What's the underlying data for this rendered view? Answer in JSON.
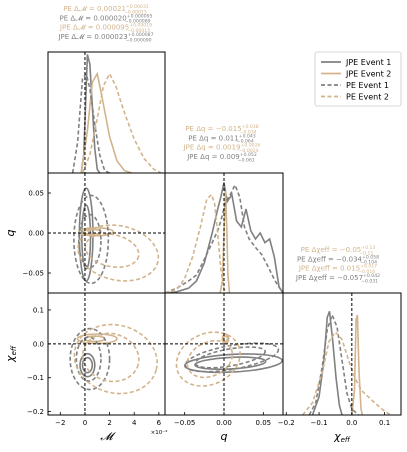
{
  "chart_data": {
    "type": "corner",
    "series": [
      {
        "name": "JPE Event 1",
        "color": "#808080",
        "dash": "solid"
      },
      {
        "name": "JPE Event 2",
        "color": "#d2b48c",
        "dash": "solid"
      },
      {
        "name": "PE Event 1",
        "color": "#808080",
        "dash": "dashed"
      },
      {
        "name": "PE Event 2",
        "color": "#d2b48c",
        "dash": "dashed"
      }
    ],
    "parameters": [
      {
        "key": "mc",
        "symbol": "𝓜",
        "sub": "",
        "range": [
          -0.0003,
          0.00065
        ],
        "ticks": [
          -2,
          0,
          2,
          4,
          6
        ],
        "tick_scale": "×10⁻⁴"
      },
      {
        "key": "q",
        "symbol": "q",
        "sub": "",
        "range": [
          -0.075,
          0.075
        ],
        "ticks": [
          -0.05,
          0.0,
          0.05
        ]
      },
      {
        "key": "chi",
        "symbol": "χ",
        "sub": "eff",
        "range": [
          -0.21,
          0.15
        ],
        "ticks": [
          -0.2,
          -0.1,
          0.0,
          0.1
        ]
      }
    ],
    "truths": {
      "mc": 0,
      "q": 0,
      "chi": 0
    },
    "titles": {
      "mc": [
        {
          "prefix": "PE Δ𝓜",
          "value": "0.00021",
          "up": "+0.00031",
          "lo": "−0.00015",
          "color": "#d2b48c"
        },
        {
          "prefix": "PE Δ𝓜",
          "value": "0.000020",
          "up": "+0.000095",
          "lo": "−0.000089",
          "color": "#808080"
        },
        {
          "prefix": "JPE Δ𝓜",
          "value": "0.000095",
          "up": "+0.00019",
          "lo": "−0.00015",
          "color": "#d2b48c"
        },
        {
          "prefix": "JPE Δ𝓜",
          "value": "0.000023",
          "up": "+0.000087",
          "lo": "−0.000090",
          "color": "#808080"
        }
      ],
      "q": [
        {
          "prefix": "PE Δq",
          "value": "−0.015",
          "up": "+0.038",
          "lo": "−0.034",
          "color": "#d2b48c"
        },
        {
          "prefix": "PE Δq",
          "value": "0.011",
          "up": "+0.043",
          "lo": "−0.064",
          "color": "#808080"
        },
        {
          "prefix": "JPE Δq",
          "value": "0.0019",
          "up": "+0.0026",
          "lo": "−0.0024",
          "color": "#d2b48c"
        },
        {
          "prefix": "JPE Δq",
          "value": "0.009",
          "up": "+0.052",
          "lo": "−0.061",
          "color": "#808080"
        }
      ],
      "chi": [
        {
          "prefix": "PE Δχeff",
          "value": "−0.05",
          "up": "+0.13",
          "lo": "−0.11",
          "color": "#d2b48c"
        },
        {
          "prefix": "PE Δχeff",
          "value": "−0.034",
          "up": "+0.058",
          "lo": "−0.104",
          "color": "#808080"
        },
        {
          "prefix": "JPE Δχeff",
          "value": "0.015",
          "up": "+0.017",
          "lo": "−0.016",
          "color": "#d2b48c"
        },
        {
          "prefix": "JPE Δχeff",
          "value": "−0.057",
          "up": "+0.042",
          "lo": "−0.031",
          "color": "#808080"
        }
      ]
    },
    "marginals": {
      "mc": [
        {
          "series": 0,
          "points": [
            [
              -3e-05,
              0
            ],
            [
              -1e-05,
              0.15
            ],
            [
              1e-05,
              0.7
            ],
            [
              2e-05,
              0.98
            ],
            [
              4e-05,
              0.9
            ],
            [
              6e-05,
              0.55
            ],
            [
              8e-05,
              0.2
            ],
            [
              0.0001,
              0.03
            ],
            [
              0.00012,
              0
            ]
          ]
        },
        {
          "series": 1,
          "points": [
            [
              -3e-05,
              0
            ],
            [
              2e-05,
              0.35
            ],
            [
              6e-05,
              0.75
            ],
            [
              0.0001,
              0.82
            ],
            [
              0.00014,
              0.62
            ],
            [
              0.0002,
              0.3
            ],
            [
              0.00026,
              0.1
            ],
            [
              0.00032,
              0.02
            ],
            [
              0.00038,
              0
            ]
          ]
        },
        {
          "series": 2,
          "points": [
            [
              -0.0001,
              0
            ],
            [
              -6e-05,
              0.25
            ],
            [
              -2e-05,
              0.78
            ],
            [
              1e-05,
              0.82
            ],
            [
              4e-05,
              0.7
            ],
            [
              8e-05,
              0.4
            ],
            [
              0.00012,
              0.15
            ],
            [
              0.00016,
              0.02
            ],
            [
              0.0002,
              0
            ]
          ]
        },
        {
          "series": 3,
          "points": [
            [
              -2e-05,
              0
            ],
            [
              4e-05,
              0.15
            ],
            [
              0.0001,
              0.45
            ],
            [
              0.00015,
              0.72
            ],
            [
              0.0002,
              0.82
            ],
            [
              0.00025,
              0.72
            ],
            [
              0.00032,
              0.5
            ],
            [
              0.0004,
              0.28
            ],
            [
              0.00048,
              0.12
            ],
            [
              0.00056,
              0.03
            ],
            [
              0.00062,
              0
            ]
          ]
        }
      ],
      "q": [
        {
          "series": 0,
          "points": [
            [
              -0.075,
              0
            ],
            [
              -0.06,
              0.01
            ],
            [
              -0.045,
              0.04
            ],
            [
              -0.035,
              0.1
            ],
            [
              -0.025,
              0.25
            ],
            [
              -0.015,
              0.5
            ],
            [
              -0.008,
              0.7
            ],
            [
              -0.004,
              0.8
            ],
            [
              0,
              0.92
            ],
            [
              0.004,
              0.76
            ],
            [
              0.01,
              0.82
            ],
            [
              0.016,
              0.6
            ],
            [
              0.022,
              0.55
            ],
            [
              0.028,
              0.7
            ],
            [
              0.034,
              0.52
            ],
            [
              0.04,
              0.45
            ],
            [
              0.046,
              0.5
            ],
            [
              0.052,
              0.42
            ],
            [
              0.058,
              0.45
            ],
            [
              0.064,
              0.3
            ],
            [
              0.07,
              0.05
            ],
            [
              0.075,
              0
            ]
          ]
        },
        {
          "series": 1,
          "points": [
            [
              -0.005,
              0
            ],
            [
              -0.002,
              0.1
            ],
            [
              0,
              0.5
            ],
            [
              0.002,
              0.85
            ],
            [
              0.0035,
              0.55
            ],
            [
              0.005,
              0.15
            ],
            [
              0.007,
              0
            ]
          ]
        },
        {
          "series": 2,
          "points": [
            [
              -0.075,
              0
            ],
            [
              -0.06,
              0.04
            ],
            [
              -0.045,
              0.1
            ],
            [
              -0.035,
              0.15
            ],
            [
              -0.025,
              0.28
            ],
            [
              -0.015,
              0.42
            ],
            [
              -0.008,
              0.52
            ],
            [
              -0.004,
              0.6
            ],
            [
              0.002,
              0.76
            ],
            [
              0.008,
              0.82
            ],
            [
              0.014,
              0.9
            ],
            [
              0.02,
              0.8
            ],
            [
              0.026,
              0.55
            ],
            [
              0.032,
              0.45
            ],
            [
              0.04,
              0.38
            ],
            [
              0.048,
              0.32
            ],
            [
              0.056,
              0.22
            ],
            [
              0.065,
              0.1
            ],
            [
              0.075,
              0
            ]
          ]
        },
        {
          "series": 3,
          "points": [
            [
              -0.075,
              0
            ],
            [
              -0.06,
              0.03
            ],
            [
              -0.05,
              0.12
            ],
            [
              -0.04,
              0.3
            ],
            [
              -0.03,
              0.55
            ],
            [
              -0.022,
              0.78
            ],
            [
              -0.016,
              0.82
            ],
            [
              -0.012,
              0.75
            ],
            [
              -0.008,
              0.5
            ],
            [
              -0.004,
              0.2
            ],
            [
              0,
              0.03
            ],
            [
              0.004,
              0
            ]
          ]
        }
      ],
      "chi": [
        {
          "series": 0,
          "points": [
            [
              -0.12,
              0
            ],
            [
              -0.1,
              0.15
            ],
            [
              -0.085,
              0.45
            ],
            [
              -0.075,
              0.8
            ],
            [
              -0.068,
              0.85
            ],
            [
              -0.058,
              0.6
            ],
            [
              -0.048,
              0.3
            ],
            [
              -0.038,
              0.08
            ],
            [
              -0.03,
              0
            ]
          ]
        },
        {
          "series": 1,
          "points": [
            [
              0.0,
              0
            ],
            [
              0.008,
              0.2
            ],
            [
              0.013,
              0.78
            ],
            [
              0.017,
              0.82
            ],
            [
              0.022,
              0.35
            ],
            [
              0.028,
              0.05
            ],
            [
              0.032,
              0
            ]
          ]
        },
        {
          "series": 2,
          "points": [
            [
              -0.13,
              0
            ],
            [
              -0.11,
              0.1
            ],
            [
              -0.09,
              0.4
            ],
            [
              -0.075,
              0.7
            ],
            [
              -0.06,
              0.82
            ],
            [
              -0.045,
              0.72
            ],
            [
              -0.03,
              0.45
            ],
            [
              -0.015,
              0.18
            ],
            [
              0.0,
              0.05
            ],
            [
              0.02,
              0
            ]
          ]
        },
        {
          "series": 3,
          "points": [
            [
              -0.15,
              0
            ],
            [
              -0.12,
              0.1
            ],
            [
              -0.09,
              0.35
            ],
            [
              -0.07,
              0.6
            ],
            [
              -0.05,
              0.68
            ],
            [
              -0.03,
              0.62
            ],
            [
              -0.01,
              0.45
            ],
            [
              0.01,
              0.3
            ],
            [
              0.03,
              0.2
            ],
            [
              0.05,
              0.15
            ],
            [
              0.07,
              0.1
            ],
            [
              0.1,
              0.03
            ],
            [
              0.12,
              0
            ]
          ]
        }
      ]
    },
    "contours": {
      "q_mc": [
        {
          "series": 0,
          "cx": 1e-05,
          "cy": -0.005,
          "rx": 3.5e-05,
          "ry": 0.04,
          "rot": 0
        },
        {
          "series": 0,
          "cx": 1e-05,
          "cy": -0.002,
          "rx": 5.5e-05,
          "ry": 0.058,
          "rot": 0
        },
        {
          "series": 1,
          "cx": 6e-05,
          "cy": 0.0015,
          "rx": 7e-05,
          "ry": 0.003,
          "rot": 0
        },
        {
          "series": 1,
          "cx": 9e-05,
          "cy": 0.0015,
          "rx": 0.00014,
          "ry": 0.005,
          "rot": 0
        },
        {
          "series": 2,
          "cx": 4e-05,
          "cy": -0.01,
          "rx": 9e-05,
          "ry": 0.033,
          "rot": 0
        },
        {
          "series": 2,
          "cx": 5e-05,
          "cy": -0.008,
          "rx": 0.00014,
          "ry": 0.055,
          "rot": 0
        },
        {
          "series": 3,
          "cx": 0.00022,
          "cy": -0.022,
          "rx": 0.00022,
          "ry": 0.02,
          "rot": 12
        },
        {
          "series": 3,
          "cx": 0.00027,
          "cy": -0.025,
          "rx": 0.00033,
          "ry": 0.034,
          "rot": 12
        }
      ],
      "chi_mc": [
        {
          "series": 0,
          "cx": 2e-05,
          "cy": -0.063,
          "rx": 4e-05,
          "ry": 0.022,
          "rot": 0
        },
        {
          "series": 0,
          "cx": 2e-05,
          "cy": -0.063,
          "rx": 6e-05,
          "ry": 0.034,
          "rot": 0
        },
        {
          "series": 1,
          "cx": 8e-05,
          "cy": 0.015,
          "rx": 8e-05,
          "ry": 0.008,
          "rot": 0
        },
        {
          "series": 1,
          "cx": 0.0001,
          "cy": 0.015,
          "rx": 0.00016,
          "ry": 0.014,
          "rot": 0
        },
        {
          "series": 2,
          "cx": 3e-05,
          "cy": -0.045,
          "rx": 0.0001,
          "ry": 0.065,
          "rot": 0
        },
        {
          "series": 2,
          "cx": 4e-05,
          "cy": -0.045,
          "rx": 0.00016,
          "ry": 0.09,
          "rot": 0
        },
        {
          "series": 3,
          "cx": 0.00021,
          "cy": -0.04,
          "rx": 0.00023,
          "ry": 0.07,
          "rot": 15
        },
        {
          "series": 3,
          "cx": 0.00025,
          "cy": -0.045,
          "rx": 0.00034,
          "ry": 0.1,
          "rot": 15
        }
      ],
      "chi_q": [
        {
          "series": 0,
          "cx": 0.008,
          "cy": -0.057,
          "rx": 0.045,
          "ry": 0.017,
          "rot": -3
        },
        {
          "series": 0,
          "cx": 0.012,
          "cy": -0.057,
          "rx": 0.062,
          "ry": 0.026,
          "rot": -3
        },
        {
          "series": 1,
          "cx": 0.0019,
          "cy": 0.015,
          "rx": 0.0025,
          "ry": 0.008,
          "rot": 0
        },
        {
          "series": 1,
          "cx": 0.0019,
          "cy": 0.015,
          "rx": 0.004,
          "ry": 0.014,
          "rot": 0
        },
        {
          "series": 2,
          "cx": 0.008,
          "cy": -0.04,
          "rx": 0.045,
          "ry": 0.025,
          "rot": -10
        },
        {
          "series": 2,
          "cx": 0.01,
          "cy": -0.04,
          "rx": 0.06,
          "ry": 0.035,
          "rot": -10
        },
        {
          "series": 3,
          "cx": -0.018,
          "cy": -0.045,
          "rx": 0.03,
          "ry": 0.05,
          "rot": -25
        },
        {
          "series": 3,
          "cx": -0.02,
          "cy": -0.045,
          "rx": 0.042,
          "ry": 0.075,
          "rot": -25
        }
      ]
    },
    "legend_position": "top-right",
    "grid": false
  }
}
